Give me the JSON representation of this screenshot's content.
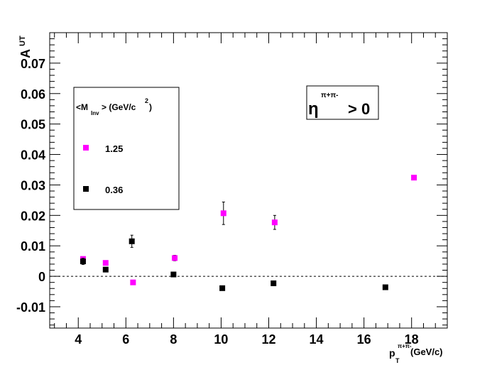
{
  "chart_data": {
    "type": "scatter",
    "title": "",
    "xlim": [
      2.8,
      19.5
    ],
    "ylim": [
      -0.017,
      0.08
    ],
    "x_ticks": [
      4,
      6,
      8,
      10,
      12,
      14,
      16,
      18
    ],
    "x_tick_labels": [
      "4",
      "6",
      "8",
      "10",
      "12",
      "14",
      "16",
      "18"
    ],
    "y_ticks": [
      -0.01,
      0,
      0.01,
      0.02,
      0.03,
      0.04,
      0.05,
      0.06,
      0.07
    ],
    "y_tick_labels": [
      "-0.01",
      "0",
      "0.01",
      "0.02",
      "0.03",
      "0.04",
      "0.05",
      "0.06",
      "0.07"
    ],
    "ylabel": {
      "main": "A",
      "sub": "UT"
    },
    "xlabel": {
      "main": "p",
      "sub": "T",
      "sup": "π+π-",
      "unit": "(GeV/c)"
    },
    "zero_line": {
      "y": 0,
      "style": "dashed"
    },
    "grid": false,
    "legend": {
      "placement": "top-left",
      "header": {
        "main": "<M",
        "sub": "Inv",
        "rest": "> (GeV/c",
        "sup": "2",
        "close": ")"
      }
    },
    "annotation": {
      "symbol": "η",
      "sup": "π+π-",
      "text": "> 0"
    },
    "series": [
      {
        "name": "1.25",
        "color": "#ff00ff",
        "x": [
          4.2,
          5.15,
          6.3,
          8.05,
          10.1,
          12.25,
          18.1
        ],
        "y": [
          0.0057,
          0.0044,
          -0.002,
          0.006,
          0.0207,
          0.0177,
          0.0324
        ],
        "err": [
          0.0006,
          0.0005,
          0.0004,
          0.0009,
          0.0037,
          0.0023,
          0
        ]
      },
      {
        "name": "0.36",
        "color": "#000000",
        "x": [
          4.2,
          5.15,
          6.25,
          8.0,
          10.05,
          12.2,
          16.9
        ],
        "y": [
          0.0049,
          0.0022,
          0.0115,
          0.0006,
          -0.0039,
          -0.0023,
          -0.0036
        ],
        "err": [
          0.001,
          0.0005,
          0.002,
          0.0004,
          0,
          0,
          0
        ]
      }
    ]
  }
}
